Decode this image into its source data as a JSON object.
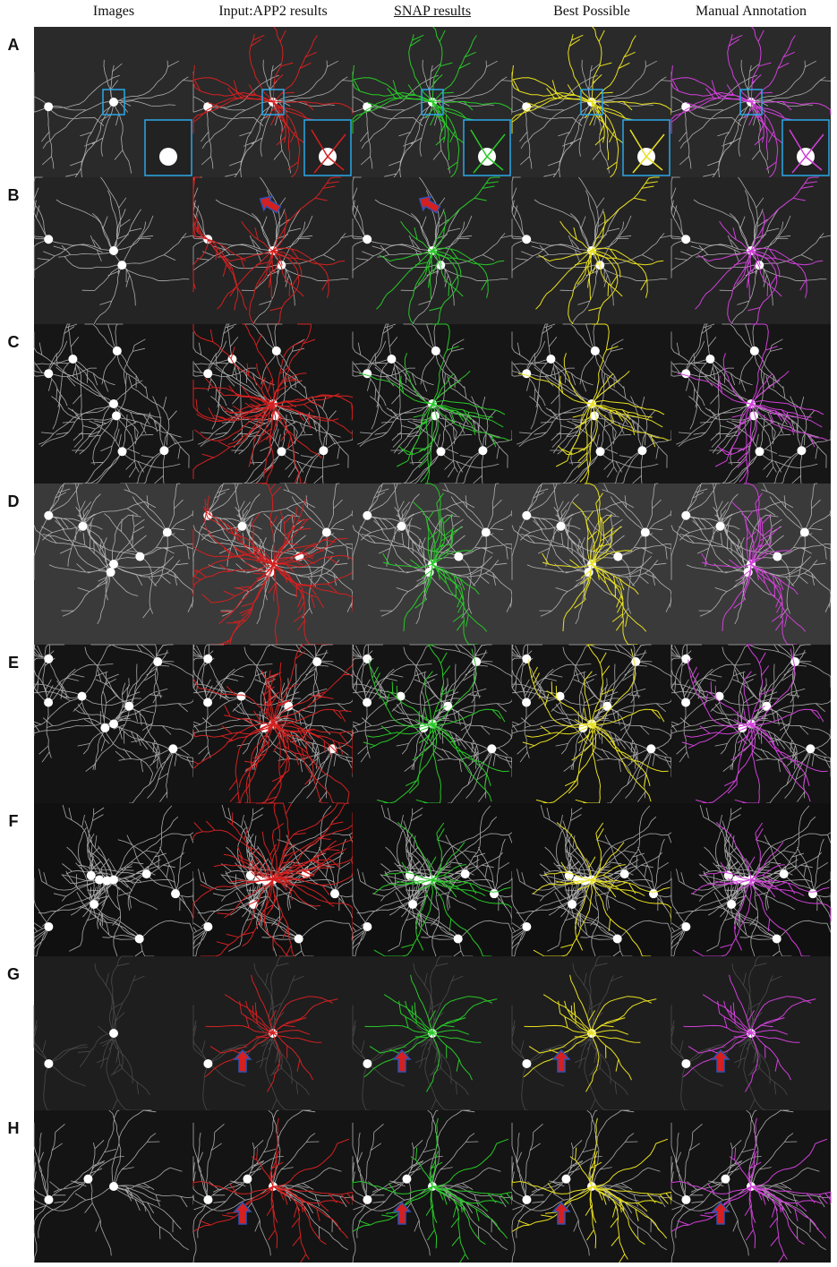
{
  "headers": [
    "Images",
    "Input:APP2 results",
    "SNAP results",
    "Best Possible",
    "Manual Annotation"
  ],
  "rows": [
    "A",
    "B",
    "C",
    "D",
    "E",
    "F",
    "G",
    "H"
  ]
}
